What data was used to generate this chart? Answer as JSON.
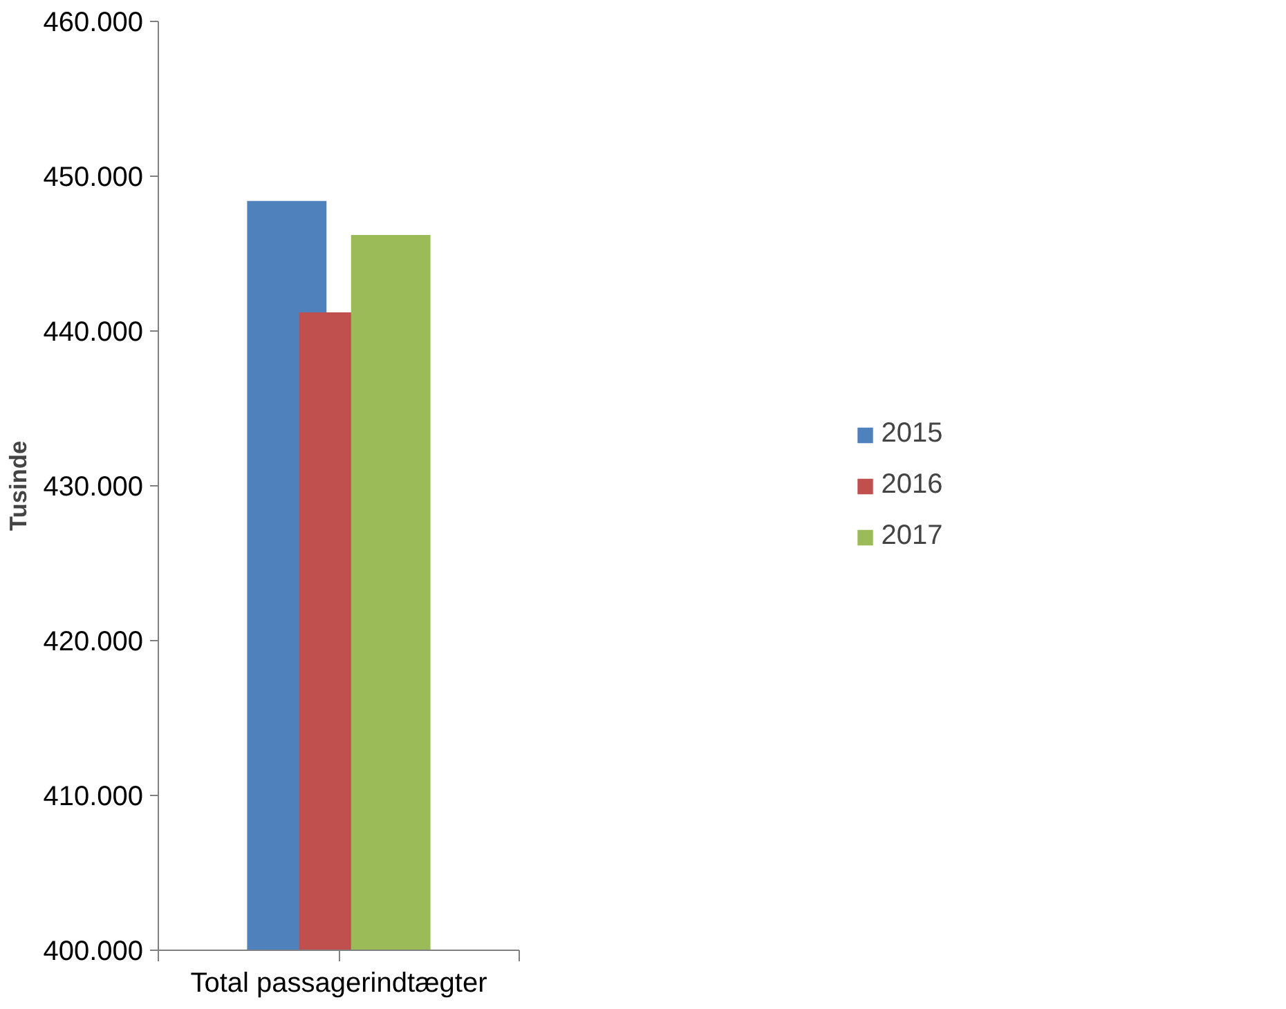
{
  "chart_data": {
    "type": "bar",
    "ylabel": "Tusinde",
    "categories": [
      "Total passagerindtægter"
    ],
    "series": [
      {
        "name": "2015",
        "color": "#4f81bd",
        "values": [
          448400
        ]
      },
      {
        "name": "2016",
        "color": "#c0504d",
        "values": [
          441200
        ]
      },
      {
        "name": "2017",
        "color": "#9bbb59",
        "values": [
          446200
        ]
      }
    ],
    "ylim": [
      400000,
      460000
    ],
    "yticks": [
      {
        "value": 400000,
        "label": "400.000"
      },
      {
        "value": 410000,
        "label": "410.000"
      },
      {
        "value": 420000,
        "label": "420.000"
      },
      {
        "value": 430000,
        "label": "430.000"
      },
      {
        "value": 440000,
        "label": "440.000"
      },
      {
        "value": 450000,
        "label": "450.000"
      },
      {
        "value": 460000,
        "label": "460.000"
      }
    ],
    "grid": false,
    "legend": "right"
  }
}
